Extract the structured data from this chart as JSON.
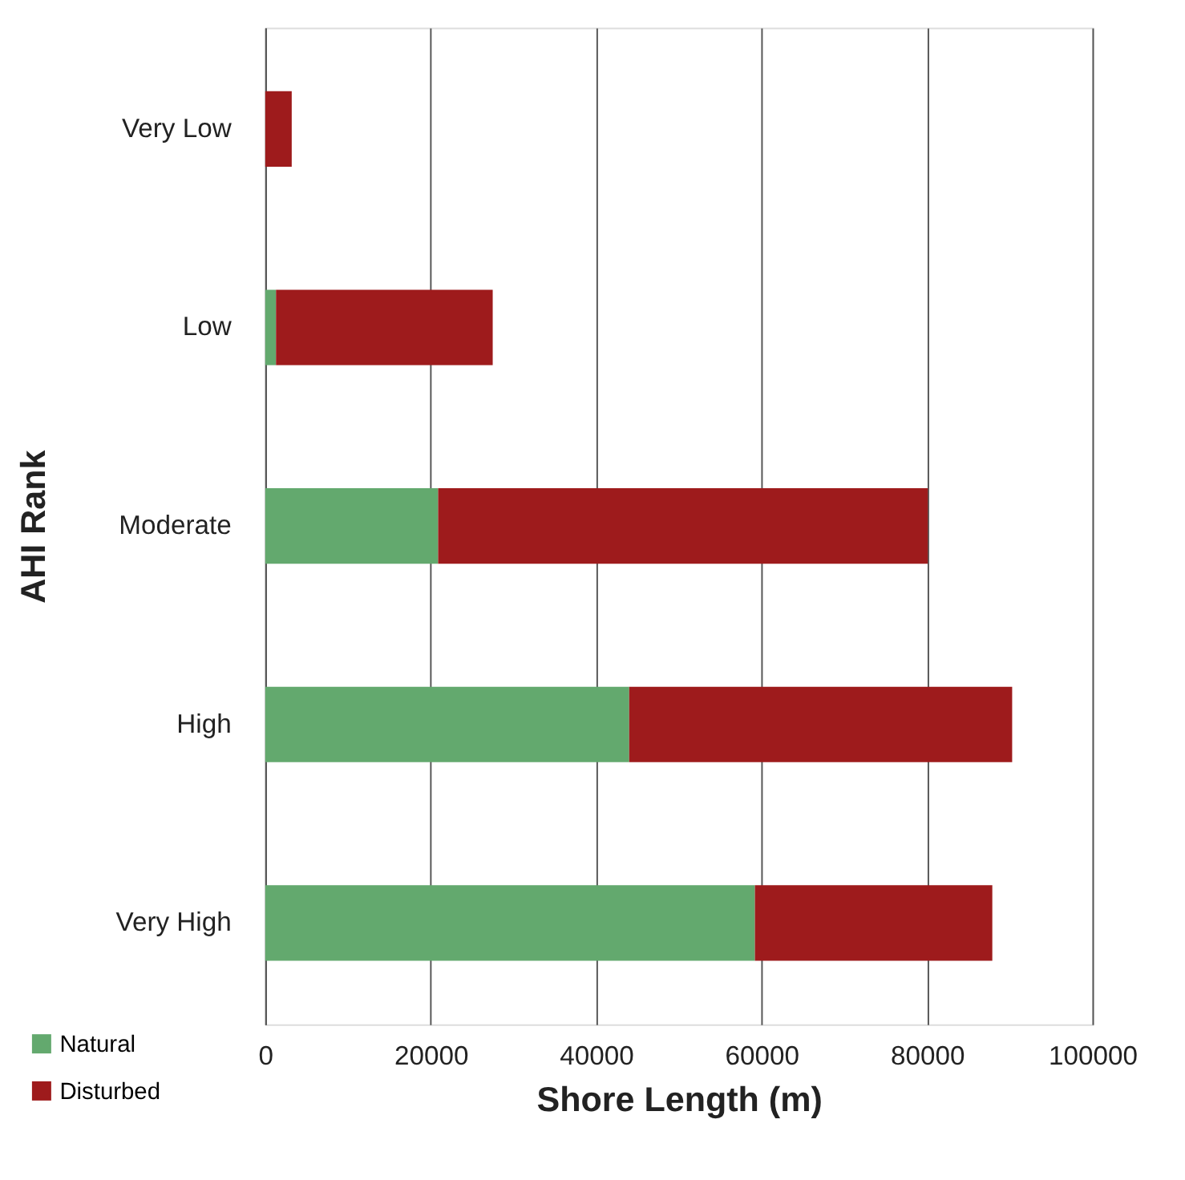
{
  "chart_data": {
    "type": "bar",
    "orientation": "horizontal",
    "stacked": true,
    "categories": [
      "Very Low",
      "Low",
      "Moderate",
      "High",
      "Very High"
    ],
    "series": [
      {
        "name": "Natural",
        "color": "#63a96e",
        "values": [
          0,
          1300,
          20900,
          44000,
          59200
        ]
      },
      {
        "name": "Disturbed",
        "color": "#9e1b1c",
        "values": [
          3200,
          26200,
          59200,
          46300,
          28700
        ]
      }
    ],
    "xlabel": "Shore Length (m)",
    "ylabel": "AHI Rank",
    "xlim": [
      0,
      100000
    ],
    "xticks": [
      0,
      20000,
      40000,
      60000,
      80000,
      100000
    ],
    "grid": "x",
    "legend": "bottom left"
  }
}
